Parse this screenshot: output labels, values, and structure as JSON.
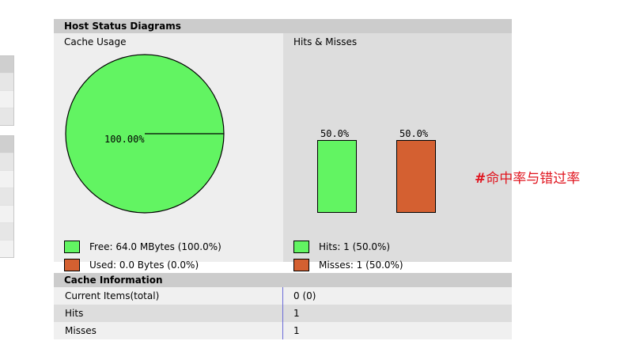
{
  "host_status": {
    "title": "Host Status Diagrams",
    "cache_usage": {
      "title": "Cache Usage",
      "pie_label": "100.00%",
      "free_legend": "Free: 64.0 MBytes (100.0%)",
      "used_legend": "Used: 0.0 Bytes (0.0%)",
      "free_fraction": 1.0,
      "used_fraction": 0.0
    },
    "hits_misses": {
      "title": "Hits & Misses",
      "hits_pct": "50.0%",
      "misses_pct": "50.0%",
      "hits_fraction": 0.5,
      "misses_fraction": 0.5,
      "hits_legend": "Hits: 1 (50.0%)",
      "misses_legend": "Misses: 1 (50.0%)"
    }
  },
  "cache_information": {
    "title": "Cache Information",
    "rows": [
      {
        "key": "Current Items(total)",
        "value": "0 (0)"
      },
      {
        "key": "Hits",
        "value": "1"
      },
      {
        "key": "Misses",
        "value": "1"
      }
    ]
  },
  "annotation": {
    "hash": "#",
    "text": "命中率与错过率"
  },
  "colors": {
    "free_green": "#62f462",
    "used_orange": "#d46031",
    "hits_green": "#62f462",
    "misses_orange": "#d46031",
    "annotation_red": "#e0141e"
  }
}
